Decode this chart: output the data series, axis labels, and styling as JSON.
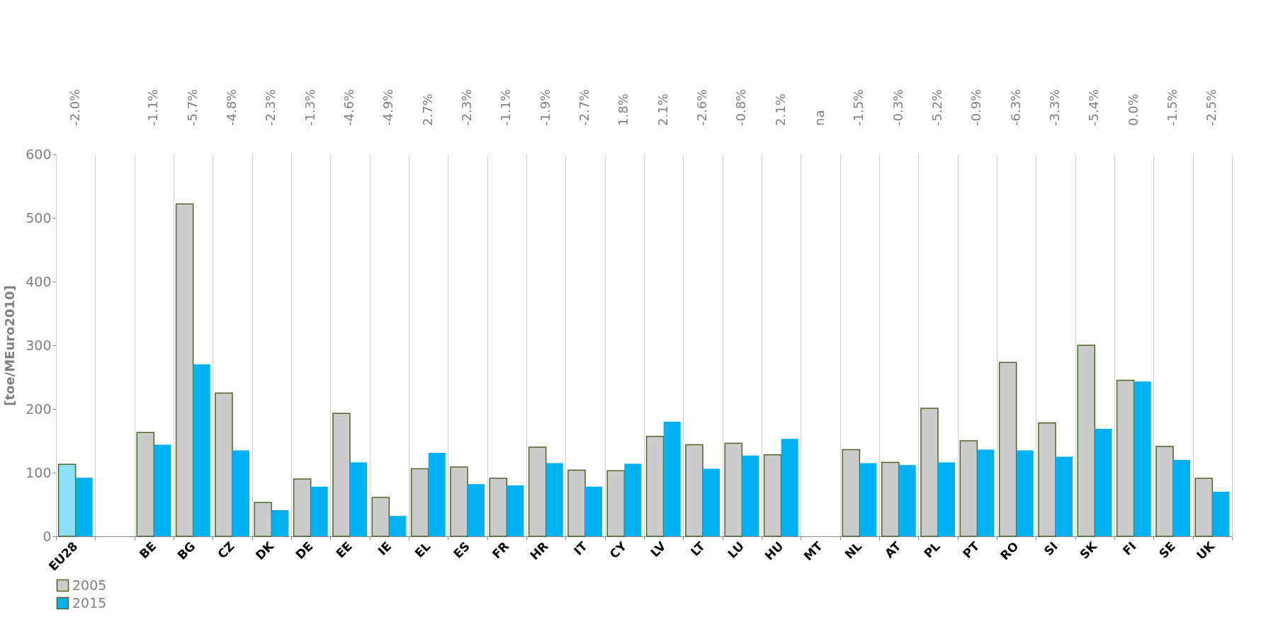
{
  "chart_data": {
    "type": "bar",
    "ylabel": "[toe/MEuro2010]",
    "categories": [
      "EU28",
      null,
      "BE",
      "BG",
      "CZ",
      "DK",
      "DE",
      "EE",
      "IE",
      "EL",
      "ES",
      "FR",
      "HR",
      "IT",
      "CY",
      "LV",
      "LT",
      "LU",
      "HU",
      "MT",
      "NL",
      "AT",
      "PL",
      "PT",
      "RO",
      "SI",
      "SK",
      "FI",
      "SE",
      "UK"
    ],
    "series": [
      {
        "name": "2005",
        "color": "#cccccc",
        "colors": [
          "#8de0fa",
          null,
          "#cccccc",
          "#cccccc",
          "#cccccc",
          "#cccccc",
          "#cccccc",
          "#cccccc",
          "#cccccc",
          "#cccccc",
          "#cccccc",
          "#cccccc",
          "#cccccc",
          "#cccccc",
          "#cccccc",
          "#cccccc",
          "#cccccc",
          "#cccccc",
          "#cccccc",
          "#cccccc",
          "#cccccc",
          "#cccccc",
          "#cccccc",
          "#cccccc",
          "#cccccc",
          "#cccccc",
          "#cccccc",
          "#cccccc",
          "#cccccc",
          "#cccccc"
        ],
        "values": [
          113,
          null,
          163,
          522,
          225,
          53,
          90,
          193,
          61,
          106,
          109,
          91,
          140,
          104,
          103,
          157,
          144,
          146,
          128,
          null,
          136,
          116,
          201,
          150,
          273,
          178,
          300,
          245,
          141,
          91
        ]
      },
      {
        "name": "2015",
        "color": "#00b0f0",
        "values": [
          92,
          null,
          144,
          270,
          135,
          41,
          78,
          116,
          32,
          131,
          82,
          80,
          115,
          78,
          114,
          180,
          106,
          127,
          153,
          null,
          115,
          112,
          116,
          136,
          135,
          125,
          169,
          243,
          120,
          70
        ]
      }
    ],
    "ylim": [
      0,
      600
    ],
    "yticks": [
      0,
      100,
      200,
      300,
      400,
      500,
      600
    ],
    "grid": "x",
    "legend": "bottom",
    "annotations": [
      "-2.0%",
      "-1.1%",
      "-5.7%",
      "-4.8%",
      "-2.3%",
      "-1.3%",
      "-4.6%",
      "-4.9%",
      "2.7%",
      "-2.3%",
      "-1.1%",
      "-1.9%",
      "-2.7%",
      "1.8%",
      "2.1%",
      "-2.6%",
      "-0.8%",
      "2.1%",
      "na",
      "-1.5%",
      "-0.3%",
      "-5.2%",
      "-0.9%",
      "-6.3%",
      "-3.3%",
      "-5.4%",
      "0.0%",
      "-1.5%",
      "-2.5%"
    ]
  }
}
